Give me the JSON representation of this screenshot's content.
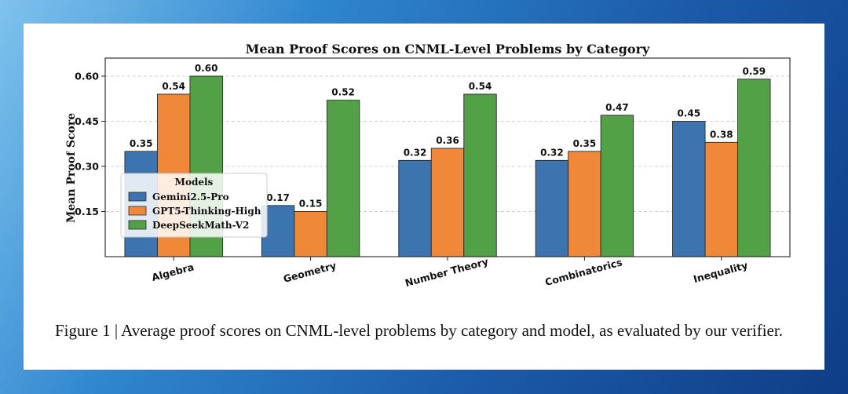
{
  "chart_data": {
    "type": "bar",
    "title": "Mean Proof Scores on CNML-Level Problems by Category",
    "xlabel": "",
    "ylabel": "Mean Proof Score",
    "categories": [
      "Algebra",
      "Geometry",
      "Number Theory",
      "Combinatorics",
      "Inequality"
    ],
    "series": [
      {
        "name": "Gemini2.5-Pro",
        "color": "#3b74ae",
        "values": [
          0.35,
          0.17,
          0.32,
          0.32,
          0.45
        ],
        "labels": [
          "0.35",
          "0.17",
          "0.32",
          "0.32",
          "0.45"
        ]
      },
      {
        "name": "GPT5-Thinking-High",
        "color": "#f0883a",
        "values": [
          0.54,
          0.15,
          0.36,
          0.35,
          0.38
        ],
        "labels": [
          "0.54",
          "0.15",
          "0.36",
          "0.35",
          "0.38"
        ]
      },
      {
        "name": "DeepSeekMath-V2",
        "color": "#52a147",
        "values": [
          0.6,
          0.52,
          0.54,
          0.47,
          0.59
        ],
        "labels": [
          "0.60",
          "0.52",
          "0.54",
          "0.47",
          "0.59"
        ]
      }
    ],
    "ylim": [
      0,
      0.66
    ],
    "yticks": [
      0.15,
      0.3,
      0.45,
      0.6
    ],
    "ytick_labels": [
      "0.15",
      "0.30",
      "0.45",
      "0.60"
    ],
    "grid": "y-dashed",
    "legend": {
      "title": "Models",
      "placement": "lower-left"
    }
  },
  "caption": "Figure 1 | Average proof scores on CNML-level problems by category and model, as evaluated by our verifier."
}
